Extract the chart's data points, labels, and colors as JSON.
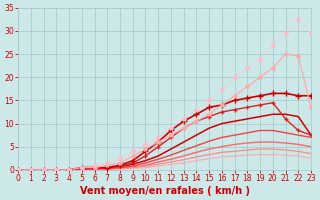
{
  "bg_color": "#cce8e8",
  "grid_color": "#aacccc",
  "xlabel": "Vent moyen/en rafales ( km/h )",
  "xlim": [
    0,
    23
  ],
  "ylim": [
    0,
    35
  ],
  "xticks": [
    0,
    1,
    2,
    3,
    4,
    5,
    6,
    7,
    8,
    9,
    10,
    11,
    12,
    13,
    14,
    15,
    16,
    17,
    18,
    19,
    20,
    21,
    22,
    23
  ],
  "yticks": [
    0,
    5,
    10,
    15,
    20,
    25,
    30,
    35
  ],
  "lines": [
    {
      "x": [
        0,
        1,
        2,
        3,
        4,
        5,
        6,
        7,
        8,
        9,
        10,
        11,
        12,
        13,
        14,
        15,
        16,
        17,
        18,
        19,
        20,
        21,
        22,
        23
      ],
      "y": [
        0,
        0,
        0,
        0,
        0,
        0.5,
        1,
        1.5,
        2.5,
        4,
        5.5,
        7,
        9,
        11,
        13,
        15,
        17.5,
        20,
        22,
        24,
        27,
        29.5,
        32.5,
        29.5
      ],
      "color": "#ffbbcc",
      "lw": 0.8,
      "marker": "*",
      "ms": 3,
      "linestyle": "dotted",
      "zorder": 7
    },
    {
      "x": [
        0,
        1,
        2,
        3,
        4,
        5,
        6,
        7,
        8,
        9,
        10,
        11,
        12,
        13,
        14,
        15,
        16,
        17,
        18,
        19,
        20,
        21,
        22,
        23
      ],
      "y": [
        0,
        0,
        0,
        0,
        0,
        0.5,
        0.5,
        1,
        1.5,
        3,
        4.5,
        6,
        7.5,
        9,
        10.5,
        12,
        14,
        16,
        18,
        20,
        22,
        25,
        24.5,
        13.5
      ],
      "color": "#ffaaaa",
      "lw": 0.9,
      "marker": "*",
      "ms": 3,
      "linestyle": "solid",
      "zorder": 6
    },
    {
      "x": [
        0,
        1,
        2,
        3,
        4,
        5,
        6,
        7,
        8,
        9,
        10,
        11,
        12,
        13,
        14,
        15,
        16,
        17,
        18,
        19,
        20,
        21,
        22,
        23
      ],
      "y": [
        0,
        0,
        0,
        0,
        0,
        0.5,
        0.5,
        0.5,
        1,
        2,
        4,
        6,
        8.5,
        10.5,
        12,
        13.5,
        14,
        15,
        15.5,
        16,
        16.5,
        16.5,
        16,
        16
      ],
      "color": "#cc0000",
      "lw": 1.2,
      "marker": "+",
      "ms": 4,
      "linestyle": "solid",
      "zorder": 5
    },
    {
      "x": [
        0,
        1,
        2,
        3,
        4,
        5,
        6,
        7,
        8,
        9,
        10,
        11,
        12,
        13,
        14,
        15,
        16,
        17,
        18,
        19,
        20,
        21,
        22,
        23
      ],
      "y": [
        0,
        0,
        0,
        0,
        0,
        0.3,
        0.3,
        0.5,
        0.8,
        1.5,
        3,
        5,
        7,
        9,
        10.5,
        11.5,
        12.5,
        13,
        13.5,
        14,
        14.5,
        11,
        8.5,
        7.5
      ],
      "color": "#dd2222",
      "lw": 1.0,
      "marker": "+",
      "ms": 3,
      "linestyle": "solid",
      "zorder": 4
    },
    {
      "x": [
        0,
        1,
        2,
        3,
        4,
        5,
        6,
        7,
        8,
        9,
        10,
        11,
        12,
        13,
        14,
        15,
        16,
        17,
        18,
        19,
        20,
        21,
        22,
        23
      ],
      "y": [
        0,
        0,
        0,
        0,
        0,
        0.2,
        0.3,
        0.4,
        0.7,
        1.2,
        2,
        3,
        4.5,
        6,
        7.5,
        9,
        10,
        10.5,
        11,
        11.5,
        12,
        12,
        11.5,
        7.5
      ],
      "color": "#cc0000",
      "lw": 1.1,
      "marker": null,
      "ms": 0,
      "linestyle": "solid",
      "zorder": 3
    },
    {
      "x": [
        0,
        1,
        2,
        3,
        4,
        5,
        6,
        7,
        8,
        9,
        10,
        11,
        12,
        13,
        14,
        15,
        16,
        17,
        18,
        19,
        20,
        21,
        22,
        23
      ],
      "y": [
        0,
        0,
        0,
        0,
        0,
        0.1,
        0.2,
        0.3,
        0.5,
        0.8,
        1.5,
        2.3,
        3.2,
        4.2,
        5.2,
        6.2,
        7,
        7.5,
        8,
        8.5,
        8.5,
        8,
        7.5,
        7
      ],
      "color": "#ee4444",
      "lw": 1.0,
      "marker": null,
      "ms": 0,
      "linestyle": "solid",
      "zorder": 3
    },
    {
      "x": [
        0,
        1,
        2,
        3,
        4,
        5,
        6,
        7,
        8,
        9,
        10,
        11,
        12,
        13,
        14,
        15,
        16,
        17,
        18,
        19,
        20,
        21,
        22,
        23
      ],
      "y": [
        0,
        0,
        0,
        0,
        0,
        0.1,
        0.2,
        0.2,
        0.4,
        0.6,
        1,
        1.7,
        2.3,
        3,
        3.8,
        4.5,
        5,
        5.5,
        5.8,
        6,
        6,
        5.8,
        5.5,
        5
      ],
      "color": "#ff6666",
      "lw": 1.0,
      "marker": null,
      "ms": 0,
      "linestyle": "solid",
      "zorder": 2
    },
    {
      "x": [
        0,
        1,
        2,
        3,
        4,
        5,
        6,
        7,
        8,
        9,
        10,
        11,
        12,
        13,
        14,
        15,
        16,
        17,
        18,
        19,
        20,
        21,
        22,
        23
      ],
      "y": [
        0,
        0,
        0,
        0,
        0,
        0.1,
        0.1,
        0.2,
        0.3,
        0.5,
        0.8,
        1.2,
        1.7,
        2.2,
        2.8,
        3.3,
        3.8,
        4,
        4.3,
        4.5,
        4.5,
        4.3,
        4,
        3.5
      ],
      "color": "#ff8888",
      "lw": 0.9,
      "marker": null,
      "ms": 0,
      "linestyle": "solid",
      "zorder": 2
    },
    {
      "x": [
        0,
        1,
        2,
        3,
        4,
        5,
        6,
        7,
        8,
        9,
        10,
        11,
        12,
        13,
        14,
        15,
        16,
        17,
        18,
        19,
        20,
        21,
        22,
        23
      ],
      "y": [
        0,
        0,
        0,
        0,
        0,
        0.05,
        0.1,
        0.15,
        0.2,
        0.3,
        0.5,
        0.8,
        1.2,
        1.5,
        2,
        2.4,
        2.8,
        3,
        3.2,
        3.3,
        3.3,
        3.2,
        3,
        2.5
      ],
      "color": "#ffaaaa",
      "lw": 0.8,
      "marker": null,
      "ms": 0,
      "linestyle": "solid",
      "zorder": 1
    }
  ],
  "tick_color": "#cc0000",
  "label_color": "#cc0000",
  "tick_fontsize": 5.5,
  "label_fontsize": 7
}
